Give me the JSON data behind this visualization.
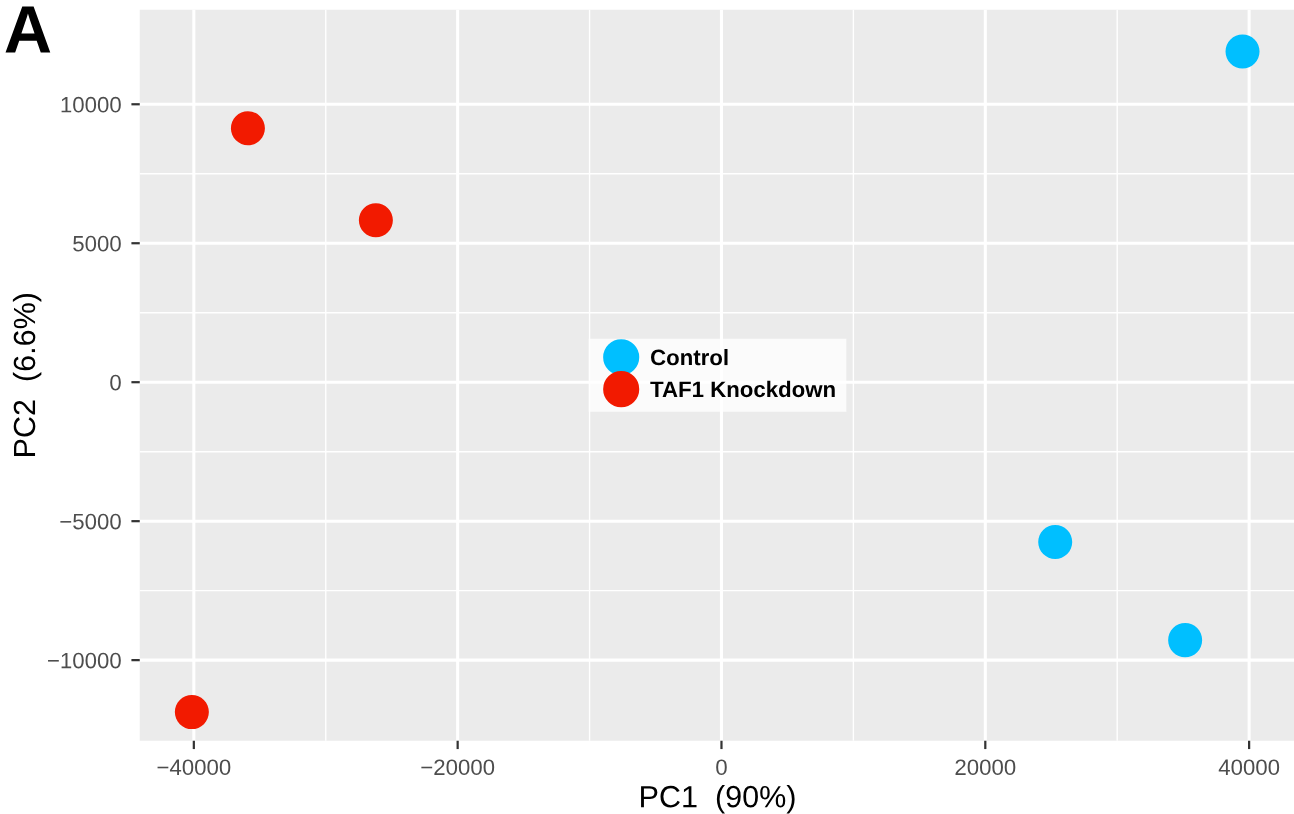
{
  "chart_data": {
    "type": "scatter",
    "xlabel": "PC1  (90%)",
    "ylabel": "PC2  (6.6%)",
    "annotations": [
      "A"
    ],
    "series": [
      {
        "name": "Control",
        "color": "#00bfff",
        "x": [
          39500,
          25300,
          35150
        ],
        "values": [
          11900,
          -5750,
          -9280
        ]
      },
      {
        "name": "TAF1 Knockdown",
        "color": "#f21a00",
        "x": [
          -35900,
          -26200,
          -40150
        ],
        "values": [
          9140,
          5830,
          -11870
        ]
      }
    ],
    "xlim": [
      -44100,
      43500
    ],
    "ylim": [
      -12900,
      13400
    ],
    "xticks": [
      {
        "value": -40000,
        "label": "−40000"
      },
      {
        "value": -20000,
        "label": "−20000"
      },
      0,
      20000,
      40000
    ],
    "yticks": [
      {
        "value": -10000,
        "label": "−10000"
      },
      {
        "value": -5000,
        "label": "−5000"
      },
      0,
      5000,
      10000
    ],
    "grid": true,
    "legend": "center",
    "marker": "circle"
  }
}
